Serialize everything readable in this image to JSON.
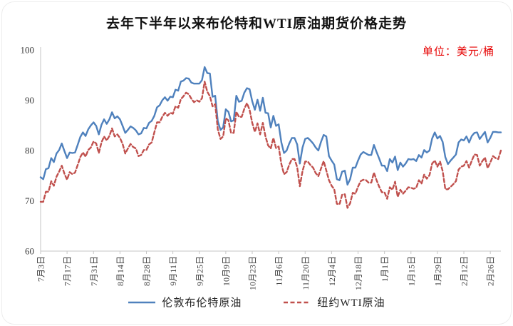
{
  "title": "去年下半年以来布伦特和WTI原油期货价格走势",
  "unit_label": "单位：美元/桶",
  "colors": {
    "brent_line": "#4F81BD",
    "wti_line": "#C0504D",
    "axis_line": "#C6C6C6",
    "axis_text": "#3a3a3a",
    "unit_text": "#E60000",
    "title_text": "#111111"
  },
  "legend": [
    {
      "label": "伦敦布伦特原油",
      "style": "solid",
      "color": "#4F81BD"
    },
    {
      "label": "纽约WTI原油",
      "style": "dashed",
      "color": "#C0504D"
    }
  ],
  "chart_data": {
    "type": "line",
    "title": "去年下半年以来布伦特和WTI原油期货价格走势",
    "unit": "美元/桶",
    "ylim": [
      60,
      100
    ],
    "yticks": [
      60,
      70,
      80,
      90,
      100
    ],
    "grid": false,
    "legend_position": "bottom",
    "x_tick_labels": [
      "7月3日",
      "7月17日",
      "7月31日",
      "8月14日",
      "8月28日",
      "9月11日",
      "9月25日",
      "10月9日",
      "10月23日",
      "11月6日",
      "11月20日",
      "12月4日",
      "12月18日",
      "1月1日",
      "1月15日",
      "1月29日",
      "2月12日",
      "2月26日"
    ],
    "x_tick_every": 10,
    "series": [
      {
        "name": "伦敦布伦特原油",
        "style": "solid",
        "color": "#4F81BD",
        "values": [
          74.7,
          74.3,
          76.3,
          76.5,
          78.5,
          77.7,
          79.4,
          80.1,
          81.4,
          79.9,
          78.5,
          79.6,
          79.5,
          79.6,
          81.1,
          82.7,
          83.6,
          82.9,
          84.2,
          85.0,
          85.6,
          84.9,
          83.2,
          85.1,
          86.2,
          85.3,
          86.2,
          87.6,
          86.4,
          86.8,
          86.2,
          84.9,
          83.5,
          84.1,
          84.8,
          84.5,
          84.0,
          83.2,
          83.4,
          84.5,
          84.4,
          85.5,
          85.9,
          86.9,
          88.6,
          89.0,
          90.0,
          90.6,
          89.9,
          90.7,
          90.6,
          92.1,
          91.9,
          93.7,
          93.9,
          94.4,
          94.3,
          93.5,
          93.3,
          93.3,
          93.3,
          94.0,
          96.6,
          95.4,
          95.3,
          90.7,
          90.9,
          85.8,
          84.1,
          84.6,
          88.2,
          87.7,
          85.8,
          86.0,
          90.9,
          89.7,
          89.9,
          91.5,
          92.4,
          92.2,
          89.8,
          88.1,
          90.1,
          87.9,
          90.5,
          87.5,
          87.4,
          84.6,
          86.9,
          84.9,
          85.2,
          81.6,
          79.5,
          80.0,
          81.4,
          82.5,
          82.5,
          81.2,
          77.4,
          80.6,
          82.3,
          82.5,
          82.0,
          81.4,
          80.6,
          80.0,
          81.7,
          83.1,
          82.8,
          78.9,
          78.0,
          77.2,
          74.3,
          74.1,
          75.8,
          76.0,
          73.2,
          74.3,
          76.6,
          76.6,
          78.0,
          79.2,
          79.7,
          79.4,
          79.1,
          79.1,
          81.1,
          79.7,
          78.4,
          77.0,
          77.0,
          75.9,
          78.3,
          77.6,
          78.8,
          76.1,
          77.6,
          76.8,
          77.4,
          78.3,
          78.2,
          78.3,
          77.9,
          79.1,
          78.6,
          80.1,
          79.6,
          80.0,
          82.4,
          83.6,
          82.4,
          82.9,
          81.7,
          78.7,
          77.3,
          78.0,
          78.6,
          79.2,
          81.6,
          82.2,
          82.0,
          82.8,
          81.6,
          82.9,
          83.5,
          83.6,
          82.3,
          83.0,
          83.7,
          81.6,
          82.5,
          83.7,
          83.7,
          83.6,
          83.6
        ]
      },
      {
        "name": "纽约WTI原油",
        "style": "dashed",
        "color": "#C0504D",
        "values": [
          69.8,
          69.8,
          71.8,
          71.8,
          73.9,
          73.0,
          74.8,
          75.8,
          77.0,
          75.4,
          74.2,
          75.7,
          75.3,
          75.6,
          77.1,
          78.7,
          79.6,
          78.8,
          80.1,
          80.6,
          81.8,
          81.4,
          79.5,
          81.6,
          82.8,
          82.0,
          82.9,
          84.4,
          82.8,
          83.2,
          82.5,
          81.3,
          79.4,
          80.4,
          81.3,
          80.7,
          80.4,
          78.9,
          79.1,
          80.1,
          80.1,
          81.2,
          81.6,
          83.6,
          85.6,
          85.6,
          86.7,
          87.5,
          86.9,
          87.5,
          87.3,
          88.8,
          88.5,
          90.2,
          90.8,
          91.5,
          91.2,
          90.3,
          89.6,
          90.0,
          89.7,
          90.4,
          93.7,
          91.7,
          90.8,
          88.8,
          89.2,
          84.2,
          82.3,
          82.8,
          86.4,
          86.0,
          83.5,
          83.5,
          87.7,
          86.7,
          86.7,
          88.3,
          89.4,
          88.1,
          85.5,
          83.7,
          85.4,
          83.2,
          85.5,
          82.8,
          81.0,
          80.4,
          82.5,
          80.5,
          80.8,
          77.3,
          75.3,
          75.7,
          77.2,
          78.3,
          78.3,
          76.7,
          72.9,
          75.9,
          77.8,
          77.8,
          77.1,
          76.6,
          75.5,
          74.9,
          76.4,
          77.9,
          76.0,
          74.1,
          73.0,
          72.3,
          69.4,
          69.3,
          71.2,
          71.3,
          68.6,
          69.5,
          71.6,
          71.4,
          72.8,
          73.9,
          74.2,
          74.1,
          73.6,
          73.6,
          75.6,
          74.1,
          72.8,
          71.7,
          71.7,
          70.4,
          72.7,
          72.2,
          73.8,
          70.8,
          72.2,
          71.4,
          72.0,
          72.7,
          72.6,
          72.4,
          72.6,
          74.1,
          73.4,
          75.2,
          74.4,
          75.1,
          77.4,
          78.0,
          76.8,
          77.8,
          75.9,
          72.3,
          72.3,
          72.8,
          73.3,
          73.9,
          76.2,
          76.8,
          77.0,
          77.9,
          76.6,
          78.0,
          79.2,
          79.1,
          77.0,
          77.9,
          78.6,
          76.5,
          77.6,
          78.9,
          78.5,
          78.3,
          80.0
        ]
      }
    ]
  }
}
